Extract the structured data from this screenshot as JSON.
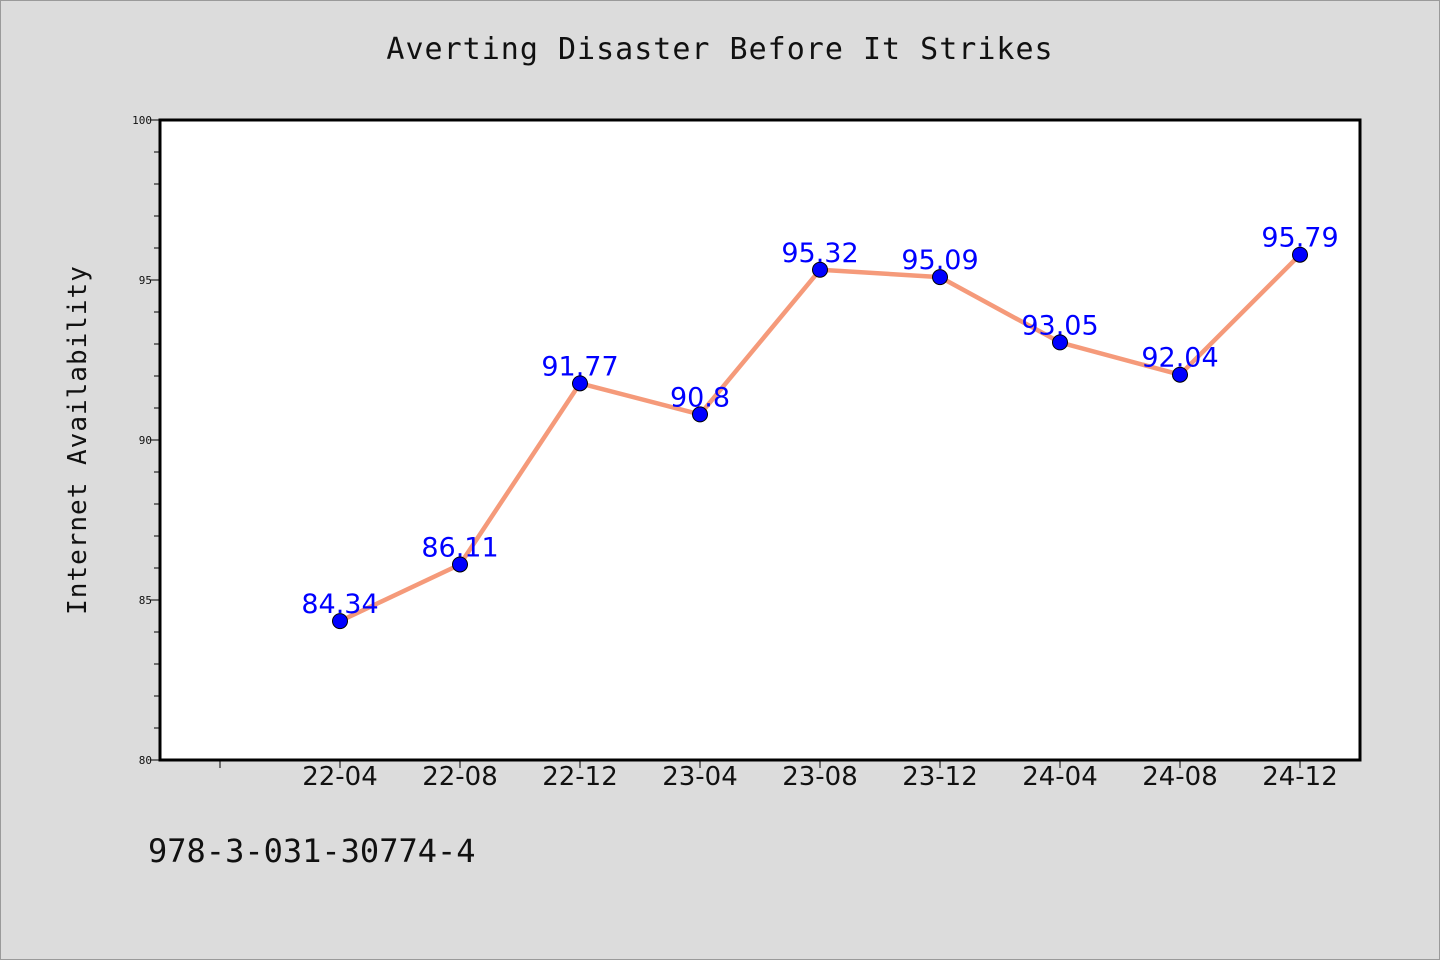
{
  "page": {
    "title": "Averting Disaster Before It Strikes",
    "footer_code": "978-3-031-30774-4"
  },
  "colors": {
    "background": "#dcdcdc",
    "plot_background": "#ffffff",
    "line": "#f59a7a",
    "marker": "#0000ff",
    "data_label": "#0000ff"
  },
  "chart_data": {
    "type": "line",
    "title": "Averting Disaster Before It Strikes",
    "xlabel": "",
    "ylabel": "Internet Availability",
    "categories": [
      "22-04",
      "22-08",
      "22-12",
      "23-04",
      "23-08",
      "23-12",
      "24-04",
      "24-08",
      "24-12"
    ],
    "series": [
      {
        "values": [
          84.34,
          86.11,
          91.77,
          90.8,
          95.32,
          95.09,
          93.05,
          92.04,
          95.79
        ]
      }
    ],
    "data_labels": [
      "84.34",
      "86.11",
      "91.77",
      "90.8",
      "95.32",
      "95.09",
      "93.05",
      "92.04",
      "95.79"
    ],
    "ylim": [
      80,
      100
    ],
    "yticks": [
      "80",
      "85",
      "90",
      "95",
      "100"
    ],
    "grid": false,
    "legend": "none"
  }
}
